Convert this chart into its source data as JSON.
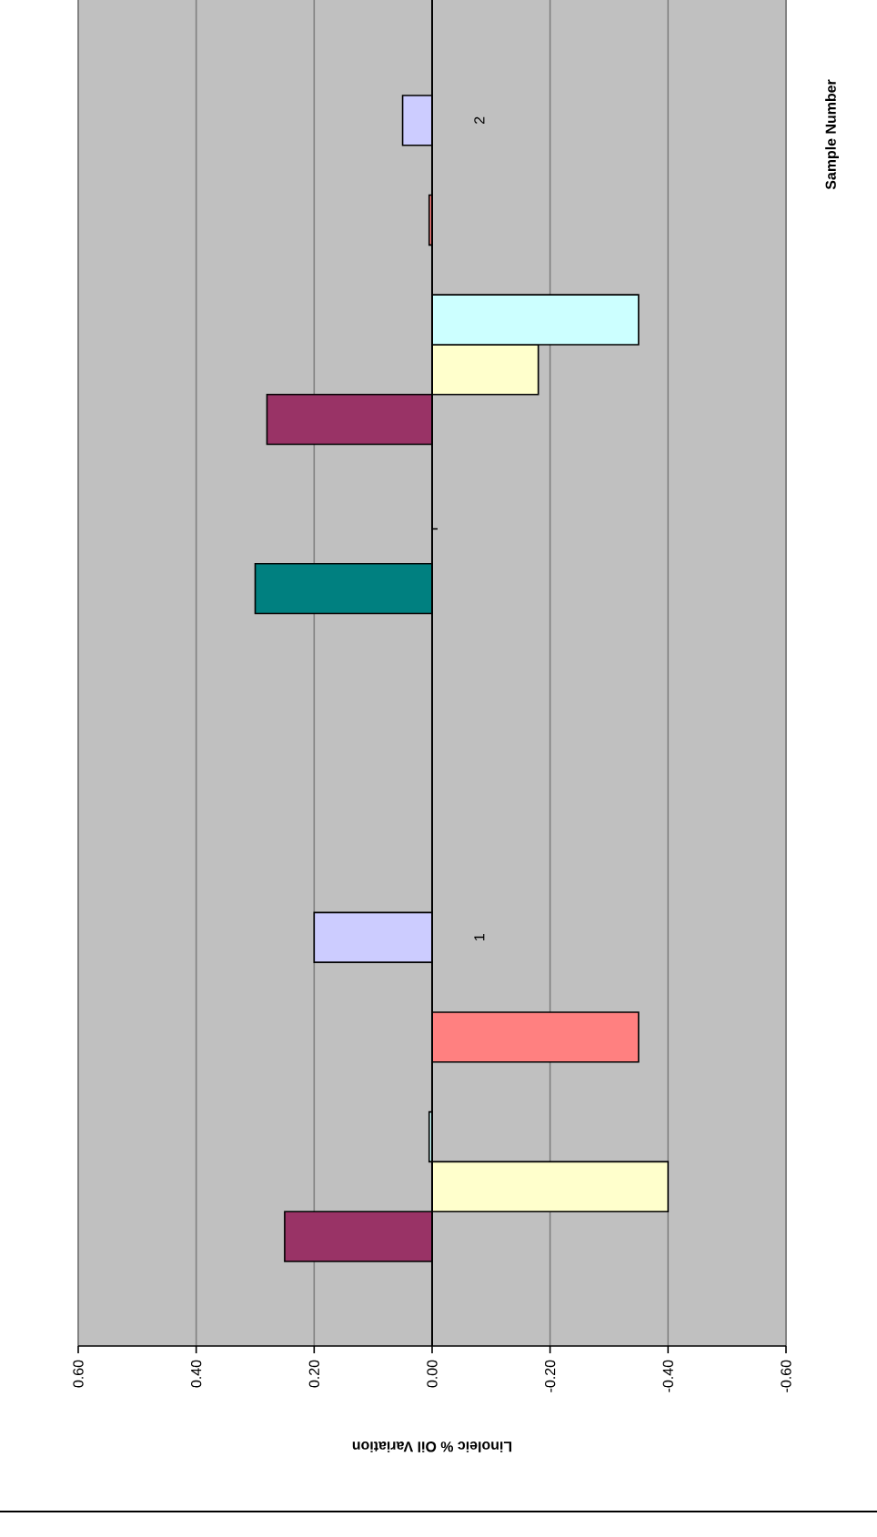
{
  "chart_data": {
    "type": "bar",
    "orientation": "horizontal",
    "xlabel": "Linoleic % Oil Variation",
    "ylabel": "Sample Number",
    "categories": [
      "2",
      "1"
    ],
    "series": [
      {
        "values": [
          null,
          null
        ]
      },
      {
        "color": "#993366",
        "values": [
          0.28,
          0.25
        ]
      },
      {
        "color": "#ffffcc",
        "values": [
          -0.18,
          -0.4
        ]
      },
      {
        "color": "#ccffff",
        "values": [
          -0.35,
          0.005
        ]
      },
      {
        "values": [
          null,
          null
        ]
      },
      {
        "color": "#ff8080",
        "values": [
          0.005,
          -0.35
        ]
      },
      {
        "values": [
          null,
          null
        ]
      },
      {
        "color": "#ccccff",
        "values": [
          0.05,
          0.2
        ]
      },
      {
        "values": [
          null,
          null
        ]
      },
      {
        "values": [
          null,
          null
        ]
      },
      {
        "values": [
          null,
          null
        ]
      },
      {
        "values": [
          null,
          null
        ]
      },
      {
        "values": [
          null,
          null
        ]
      },
      {
        "values": [
          null,
          null
        ]
      },
      {
        "color": "#008080",
        "values": [
          null,
          0.3
        ]
      }
    ],
    "xlim": [
      0.6,
      -0.6
    ],
    "xticks": [
      {
        "value": 0.6,
        "label": "0.60"
      },
      {
        "value": 0.4,
        "label": "0.40"
      },
      {
        "value": 0.2,
        "label": "0.20"
      },
      {
        "value": 0.0,
        "label": "0.00"
      },
      {
        "value": -0.2,
        "label": "-0.20"
      },
      {
        "value": -0.4,
        "label": "-0.40"
      },
      {
        "value": -0.6,
        "label": "-0.60"
      }
    ],
    "grid": "x"
  }
}
